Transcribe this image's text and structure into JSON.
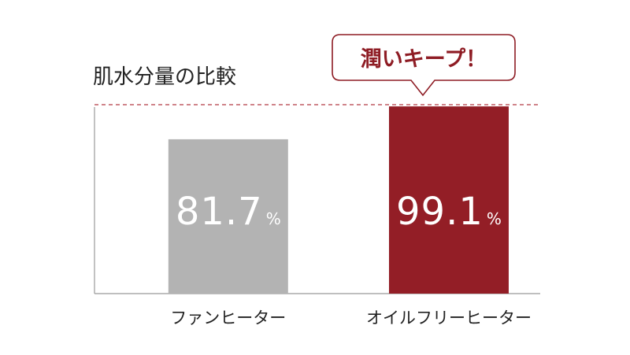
{
  "colors": {
    "fan_heater": "#b3b3b3",
    "oil_free_heater": "#931e26",
    "reference_line": "#b53a44",
    "callout_border": "#8e1c24",
    "axis": "#999999"
  },
  "callout": {
    "text": "潤いキープ！"
  },
  "chart_data": {
    "type": "bar",
    "title": "肌水分量の比較",
    "categories": [
      "ファンヒーター",
      "オイルフリーヒーター"
    ],
    "values": [
      81.7,
      99.1
    ],
    "unit": "%",
    "value_labels": [
      "81.7",
      "99.1"
    ],
    "ylim": [
      0,
      100
    ],
    "grid": false,
    "legend": "none",
    "reference_line": {
      "value": 100,
      "style": "dashed"
    }
  }
}
